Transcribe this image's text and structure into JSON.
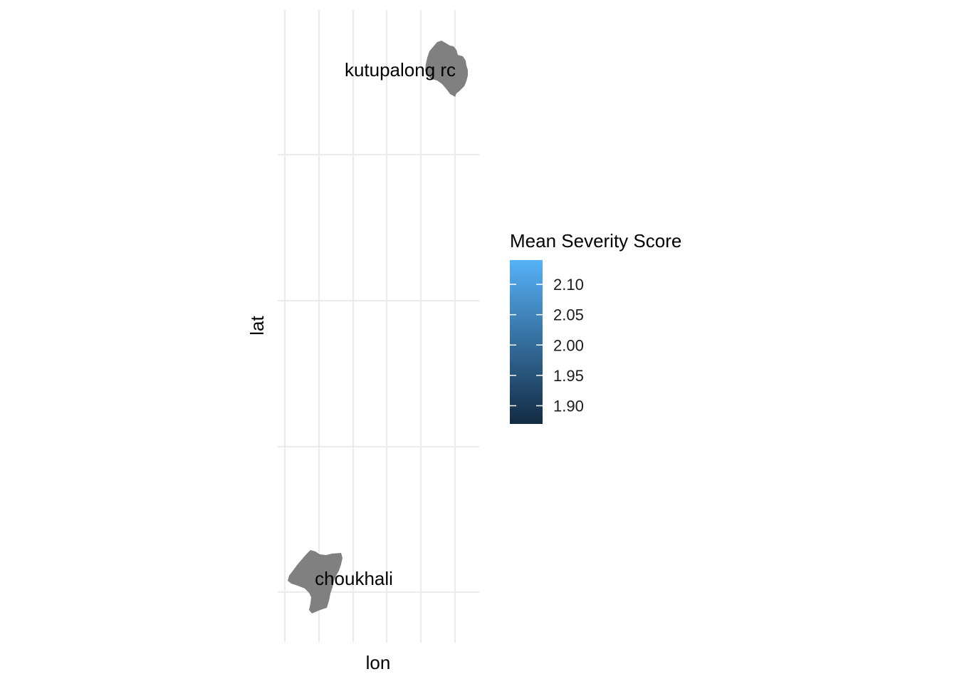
{
  "map": {
    "xlabel": "lon",
    "ylabel": "lat",
    "grid": true,
    "region_fill": "#808080",
    "regions": [
      {
        "name": "kutupalong rc",
        "label": "kutupalong rc"
      },
      {
        "name": "choukhali",
        "label": "choukhali"
      }
    ]
  },
  "legend": {
    "title": "Mean Severity Score",
    "low_color": "#132b43",
    "high_color": "#56b1f7",
    "range": [
      1.87,
      2.14
    ],
    "breaks": [
      "2.10",
      "2.05",
      "2.00",
      "1.95",
      "1.90"
    ],
    "break_values": [
      2.1,
      2.05,
      2.0,
      1.95,
      1.9
    ]
  }
}
